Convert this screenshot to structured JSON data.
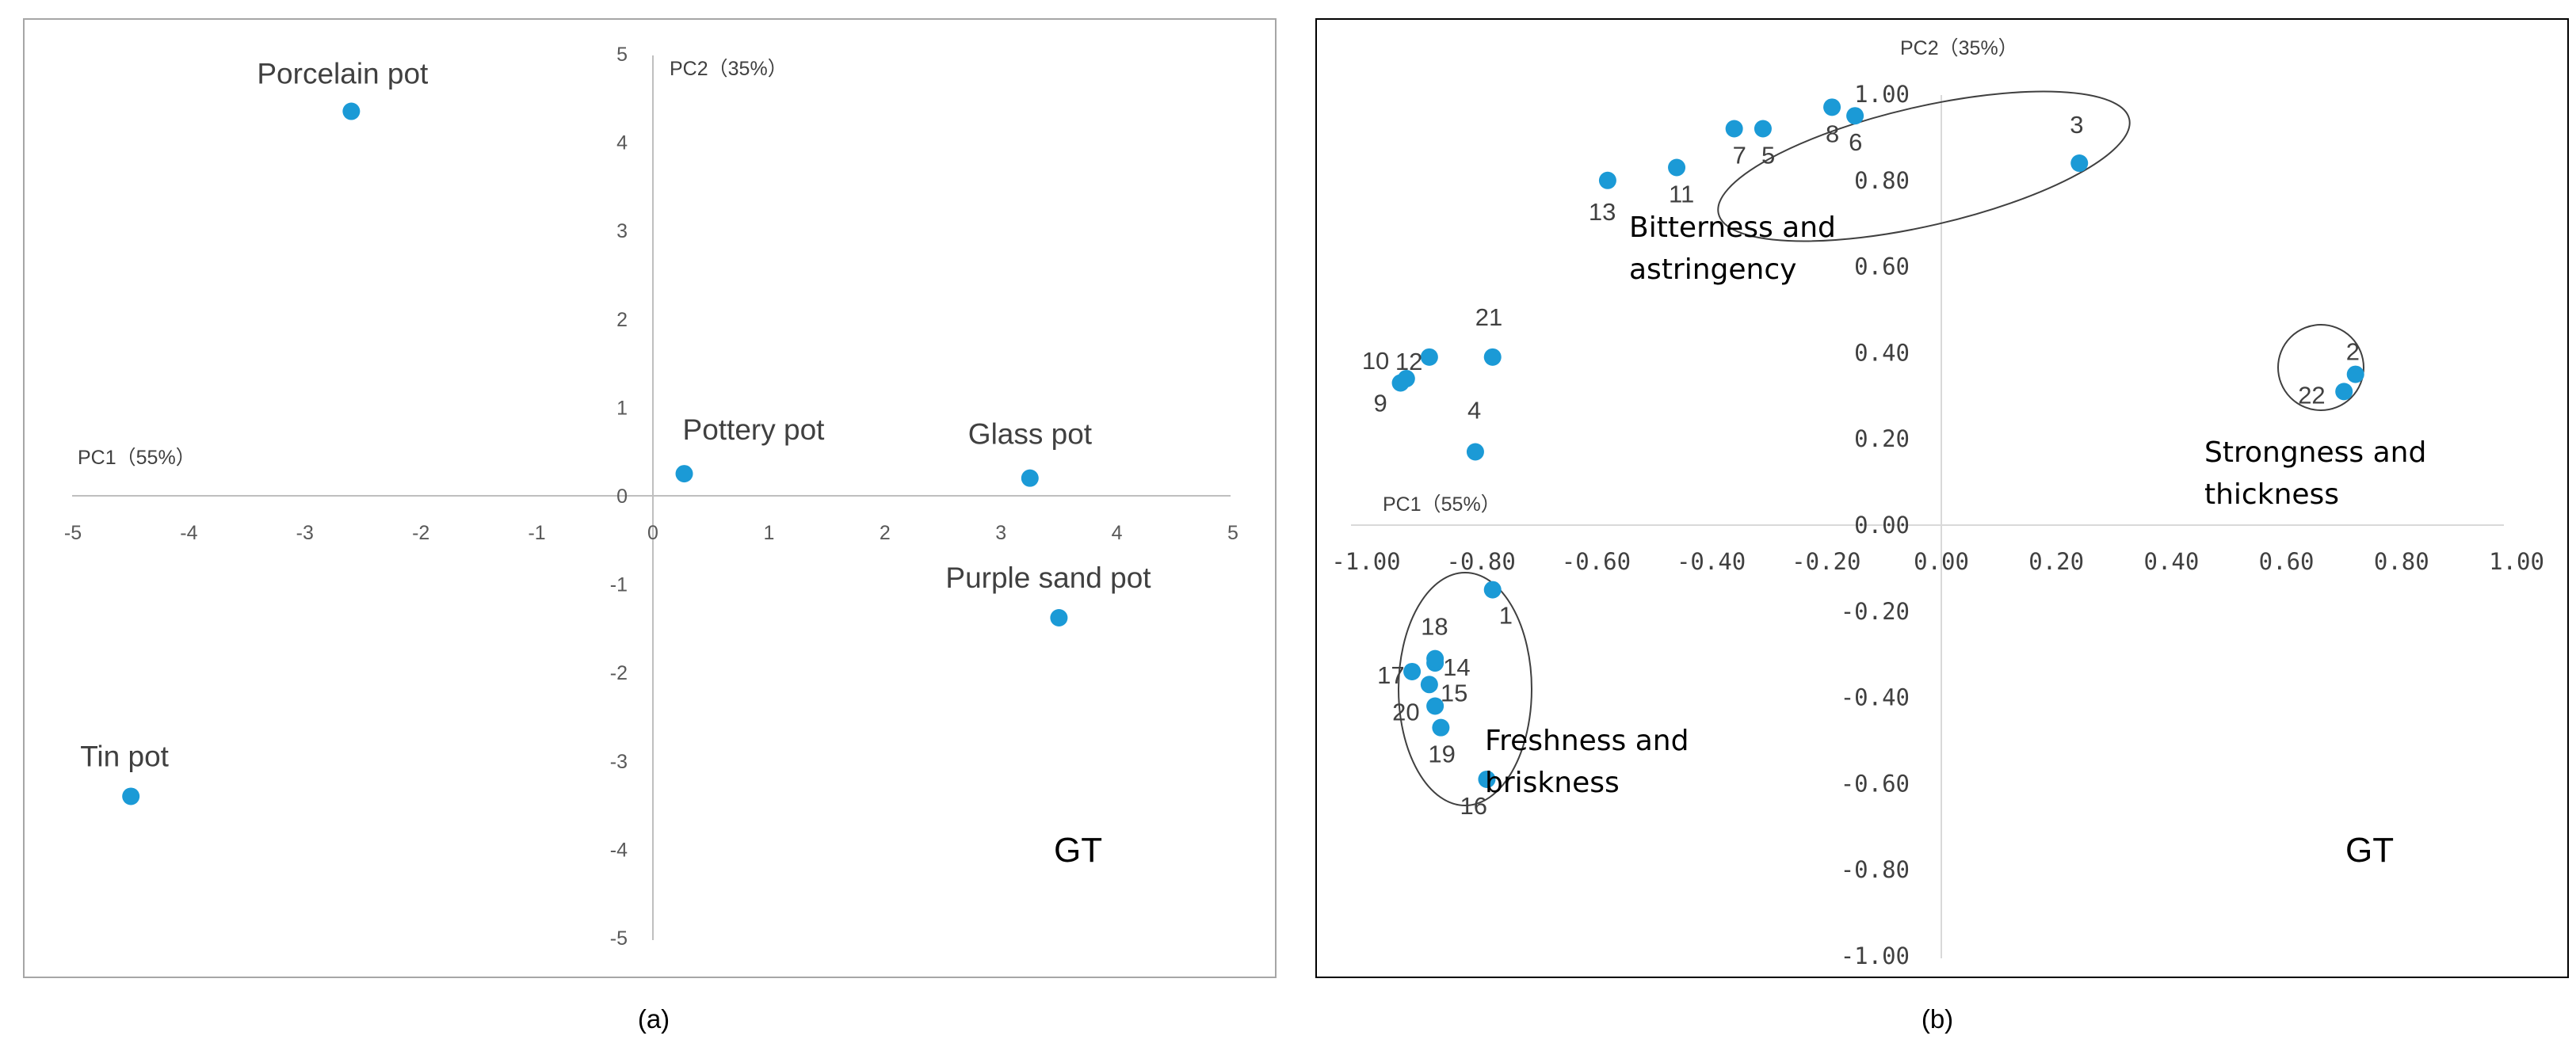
{
  "chart_data": [
    {
      "type": "scatter",
      "panel": "(a)",
      "xlabel": "PC1（55%）",
      "ylabel": "PC2（35%）",
      "xlim": [
        -5,
        5
      ],
      "ylim": [
        -5,
        5
      ],
      "xticks": [
        "-5",
        "-4",
        "-3",
        "-2",
        "-1",
        "0",
        "1",
        "2",
        "3",
        "4",
        "5"
      ],
      "yticks": [
        "5",
        "4",
        "3",
        "2",
        "1",
        "0",
        "-1",
        "-2",
        "-3",
        "-4",
        "-5"
      ],
      "points": [
        {
          "label": "Porcelain pot",
          "x": -2.6,
          "y": 4.35
        },
        {
          "label": "Pottery pot",
          "x": 0.27,
          "y": 0.25
        },
        {
          "label": "Glass pot",
          "x": 3.25,
          "y": 0.2
        },
        {
          "label": "Purple sand pot",
          "x": 3.5,
          "y": -1.38
        },
        {
          "label": "Tin pot",
          "x": -4.5,
          "y": -3.4
        }
      ],
      "annotation": "GT",
      "caption": "(a)",
      "color": "#1b9ad6"
    },
    {
      "type": "scatter",
      "panel": "(b)",
      "xlabel": "PC1（55%）",
      "ylabel": "PC2（35%）",
      "xlim": [
        -1.0,
        1.0
      ],
      "ylim": [
        -1.0,
        1.0
      ],
      "xticks": [
        "-1.00",
        "-0.80",
        "-0.60",
        "-0.40",
        "-0.20",
        "0.00",
        "0.20",
        "0.40",
        "0.60",
        "0.80",
        "1.00"
      ],
      "yticks": [
        "1.00",
        "0.80",
        "0.60",
        "0.40",
        "0.20",
        "0.00",
        "-0.20",
        "-0.40",
        "-0.60",
        "-0.80",
        "-1.00"
      ],
      "points": [
        {
          "label": "1",
          "x": -0.78,
          "y": -0.15
        },
        {
          "label": "2",
          "x": 0.72,
          "y": 0.35
        },
        {
          "label": "3",
          "x": 0.24,
          "y": 0.84
        },
        {
          "label": "4",
          "x": -0.81,
          "y": 0.17
        },
        {
          "label": "5",
          "x": -0.31,
          "y": 0.92
        },
        {
          "label": "6",
          "x": -0.15,
          "y": 0.95
        },
        {
          "label": "7",
          "x": -0.36,
          "y": 0.92
        },
        {
          "label": "8",
          "x": -0.19,
          "y": 0.97
        },
        {
          "label": "9",
          "x": -0.94,
          "y": 0.33
        },
        {
          "label": "10",
          "x": -0.93,
          "y": 0.34
        },
        {
          "label": "11",
          "x": -0.46,
          "y": 0.83
        },
        {
          "label": "12",
          "x": -0.89,
          "y": 0.39
        },
        {
          "label": "13",
          "x": -0.58,
          "y": 0.8
        },
        {
          "label": "14",
          "x": -0.88,
          "y": -0.32
        },
        {
          "label": "15",
          "x": -0.89,
          "y": -0.37
        },
        {
          "label": "16",
          "x": -0.79,
          "y": -0.59
        },
        {
          "label": "17",
          "x": -0.92,
          "y": -0.34
        },
        {
          "label": "18",
          "x": -0.88,
          "y": -0.31
        },
        {
          "label": "19",
          "x": -0.87,
          "y": -0.47
        },
        {
          "label": "20",
          "x": -0.88,
          "y": -0.42
        },
        {
          "label": "21",
          "x": -0.78,
          "y": 0.39
        },
        {
          "label": "22",
          "x": 0.7,
          "y": 0.31
        }
      ],
      "groups": [
        {
          "label_lines": [
            "Bitterness and",
            "astringency"
          ],
          "members": [
            "3",
            "5",
            "6",
            "7",
            "8",
            "11",
            "13"
          ]
        },
        {
          "label_lines": [
            "Strongness and",
            "thickness"
          ],
          "members": [
            "2",
            "22"
          ]
        },
        {
          "label_lines": [
            "Freshness and",
            "briskness"
          ],
          "members": [
            "1",
            "14",
            "15",
            "16",
            "17",
            "18",
            "19",
            "20"
          ]
        }
      ],
      "annotation": "GT",
      "caption": "(b)",
      "color": "#1b9ad6"
    }
  ]
}
